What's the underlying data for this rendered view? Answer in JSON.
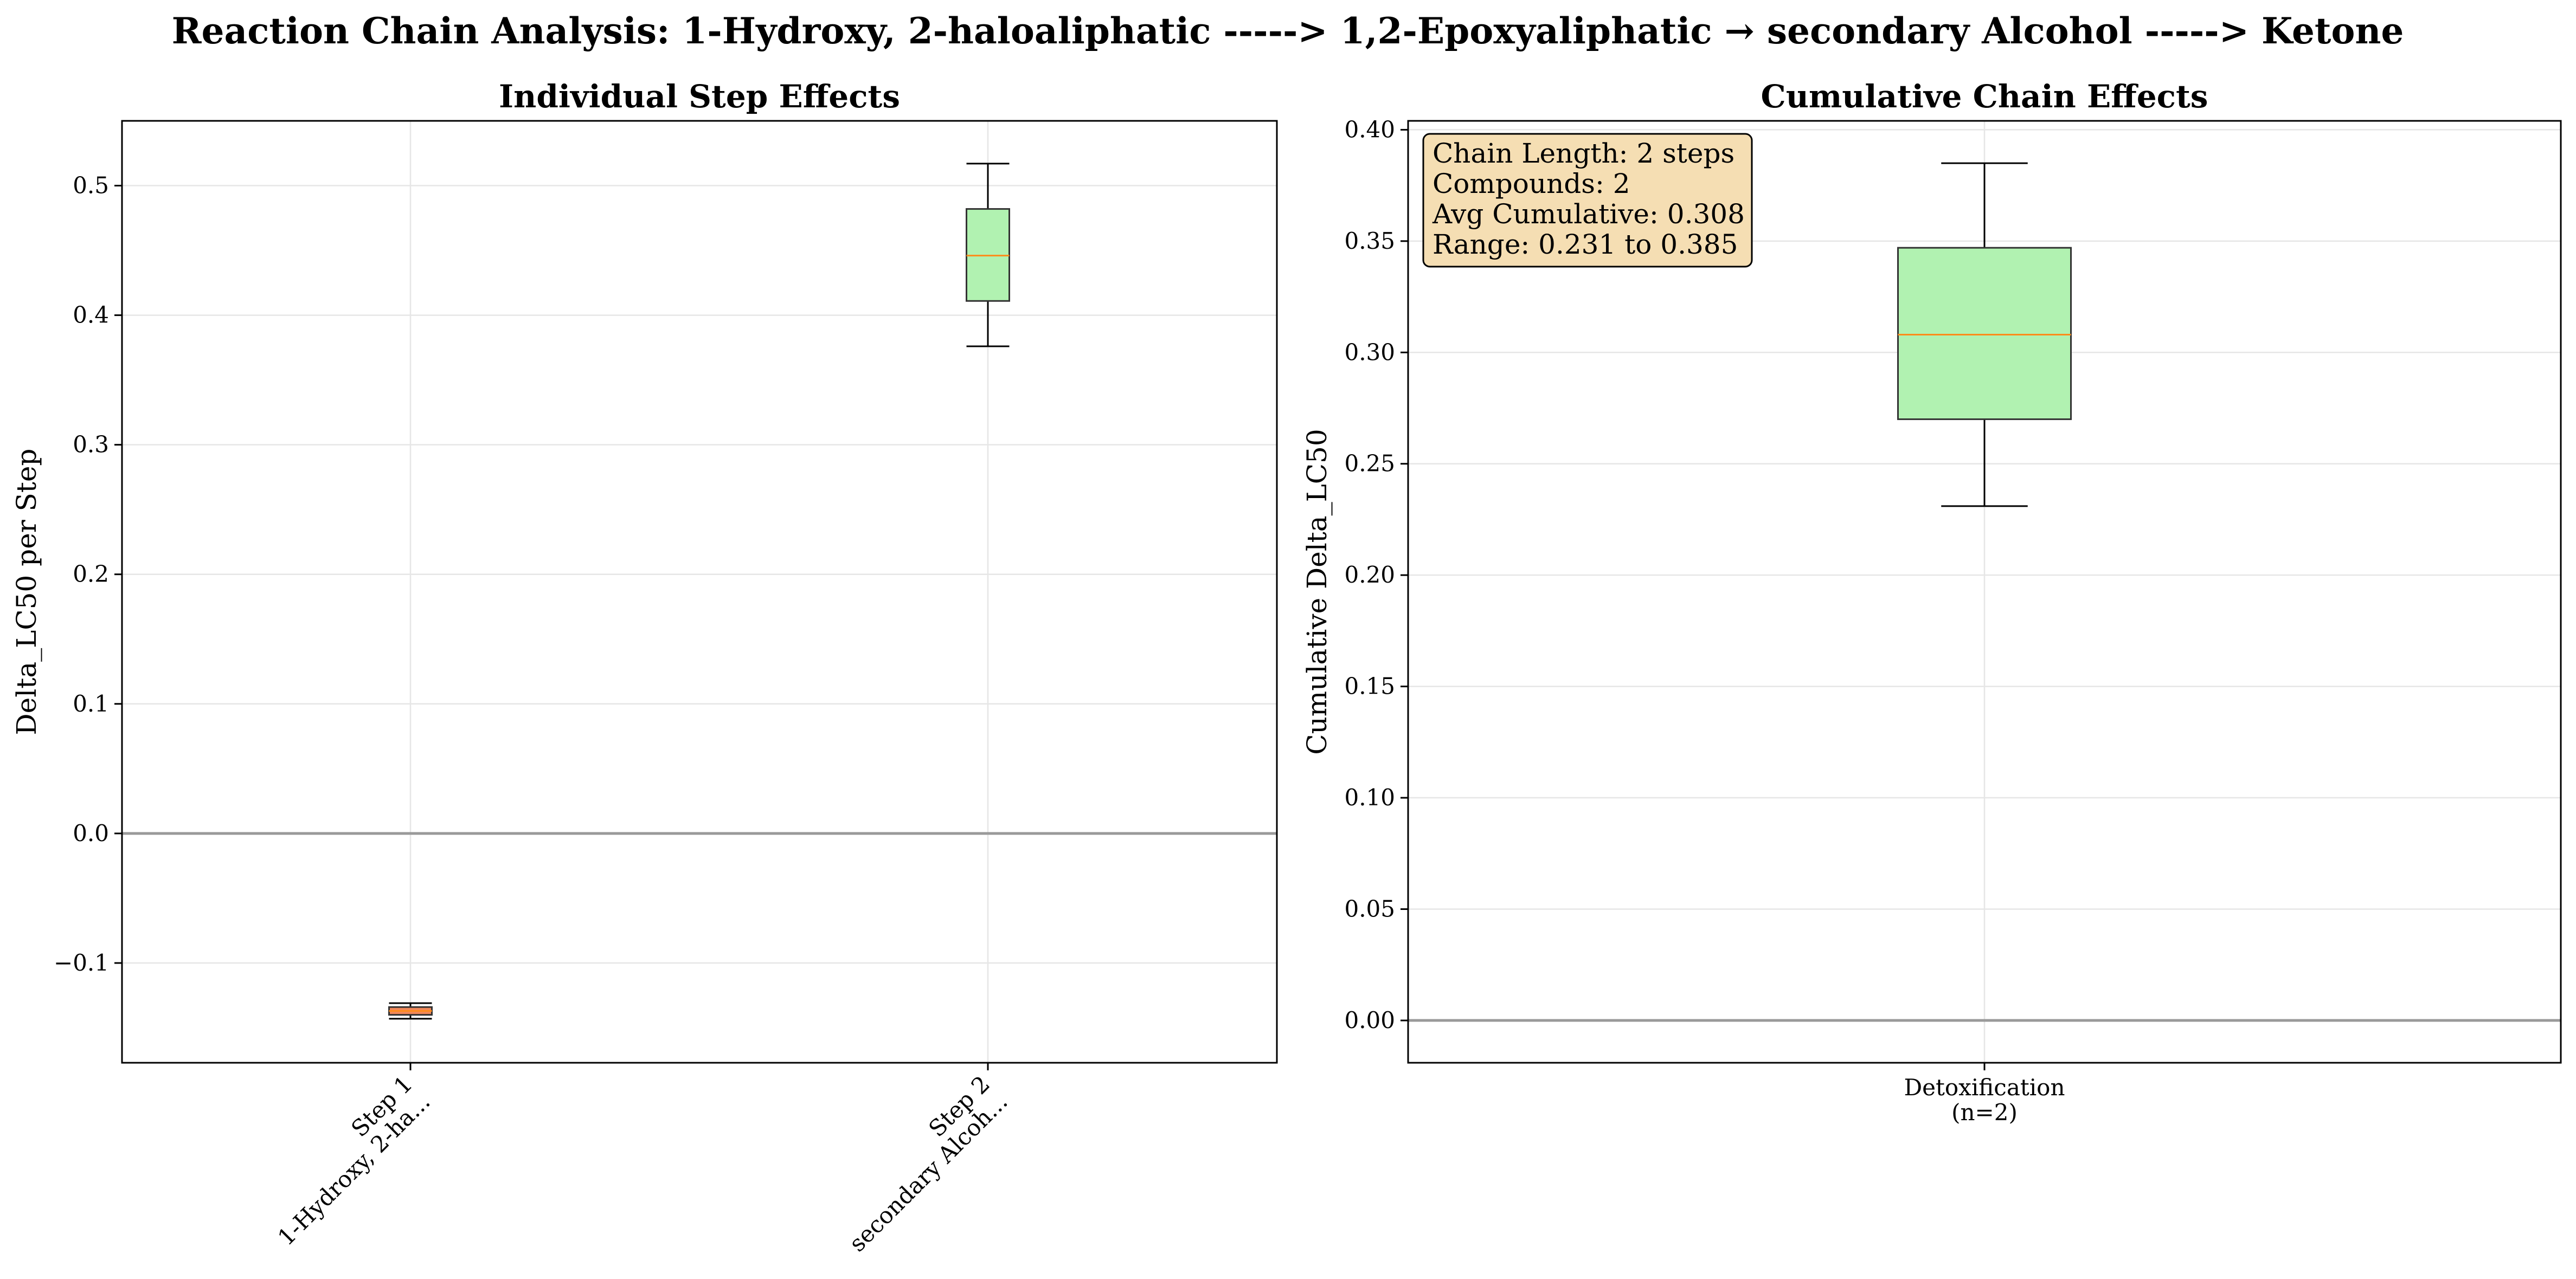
{
  "figure": {
    "title": "Reaction Chain Analysis: 1-Hydroxy, 2-haloaliphatic -----> 1,2-Epoxyaliphatic → secondary Alcohol -----> Ketone"
  },
  "colors": {
    "green_box": "#b1f2b1",
    "orange_box": "#f0885a",
    "median_line": "#ff8c1a",
    "zero_line": "#9a9a9a",
    "grid": "#e6e6e6",
    "infobox_fill": "#f5deb3"
  },
  "chart_data": [
    {
      "type": "box",
      "title": "Individual Step Effects",
      "xlabel": "",
      "ylabel": "Delta_LC50 per Step",
      "ylim": [
        -0.177,
        0.55
      ],
      "yticks": [
        "-0.1",
        "0.0",
        "0.1",
        "0.2",
        "0.3",
        "0.4",
        "0.5"
      ],
      "ytick_values": [
        -0.1,
        0.0,
        0.1,
        0.2,
        0.3,
        0.4,
        0.5
      ],
      "grid": true,
      "reference_line": 0.0,
      "categories": [
        {
          "line1": "Step 1",
          "line2": "1-Hydroxy, 2-ha..."
        },
        {
          "line1": "Step 2",
          "line2": "secondary Alcoh..."
        }
      ],
      "boxes": [
        {
          "whisker_low": -0.143,
          "q1": -0.14,
          "median": -0.137,
          "q3": -0.134,
          "whisker_high": -0.131,
          "color": "orange"
        },
        {
          "whisker_low": 0.376,
          "q1": 0.411,
          "median": 0.446,
          "q3": 0.482,
          "whisker_high": 0.517,
          "color": "green"
        }
      ]
    },
    {
      "type": "box",
      "title": "Cumulative Chain Effects",
      "xlabel": "",
      "ylabel": "Cumulative Delta_LC50",
      "ylim": [
        -0.019,
        0.404
      ],
      "yticks": [
        "0.00",
        "0.05",
        "0.10",
        "0.15",
        "0.20",
        "0.25",
        "0.30",
        "0.35",
        "0.40"
      ],
      "ytick_values": [
        0.0,
        0.05,
        0.1,
        0.15,
        0.2,
        0.25,
        0.3,
        0.35,
        0.4
      ],
      "grid": true,
      "reference_line": 0.0,
      "categories": [
        {
          "line1": "Detoxification",
          "line2": "(n=2)"
        }
      ],
      "boxes": [
        {
          "whisker_low": 0.231,
          "q1": 0.27,
          "median": 0.308,
          "q3": 0.347,
          "whisker_high": 0.385,
          "color": "green"
        }
      ],
      "annotation": {
        "placement": "top-left",
        "lines": [
          "Chain Length: 2 steps",
          "Compounds: 2",
          "Avg Cumulative: 0.308",
          "Range: 0.231 to 0.385"
        ]
      }
    }
  ]
}
